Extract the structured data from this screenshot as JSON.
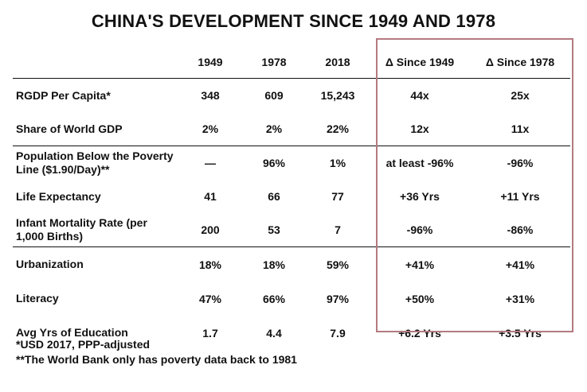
{
  "chart_data": {
    "type": "table",
    "title": "CHINA'S DEVELOPMENT SINCE 1949 AND 1978",
    "columns": [
      "",
      "1949",
      "1978",
      "2018",
      "Δ Since 1949",
      "Δ Since 1978"
    ],
    "rows": [
      {
        "label": "RGDP Per Capita*",
        "cells": [
          "348",
          "609",
          "15,243",
          "44x",
          "25x"
        ]
      },
      {
        "label": "Share of World GDP",
        "cells": [
          "2%",
          "2%",
          "22%",
          "12x",
          "11x"
        ]
      },
      {
        "label": "Population Below the Poverty Line ($1.90/Day)**",
        "cells": [
          "—",
          "96%",
          "1%",
          "at least -96%",
          "-96%"
        ]
      },
      {
        "label": "Life Expectancy",
        "cells": [
          "41",
          "66",
          "77",
          "+36 Yrs",
          "+11 Yrs"
        ]
      },
      {
        "label": "Infant Mortality Rate (per 1,000 Births)",
        "cells": [
          "200",
          "53",
          "7",
          "-96%",
          "-86%"
        ]
      },
      {
        "label": "Urbanization",
        "cells": [
          "18%",
          "18%",
          "59%",
          "+41%",
          "+41%"
        ]
      },
      {
        "label": "Literacy",
        "cells": [
          "47%",
          "66%",
          "97%",
          "+50%",
          "+31%"
        ]
      },
      {
        "label": "Avg Yrs of Education",
        "cells": [
          "1.7",
          "4.4",
          "7.9",
          "+6.2 Yrs",
          "+3.5 Yrs"
        ]
      }
    ],
    "footnotes": [
      "*USD 2017, PPP-adjusted",
      "**The World Bank only has poverty data back to 1981"
    ],
    "highlight_color": "#b47a80"
  }
}
